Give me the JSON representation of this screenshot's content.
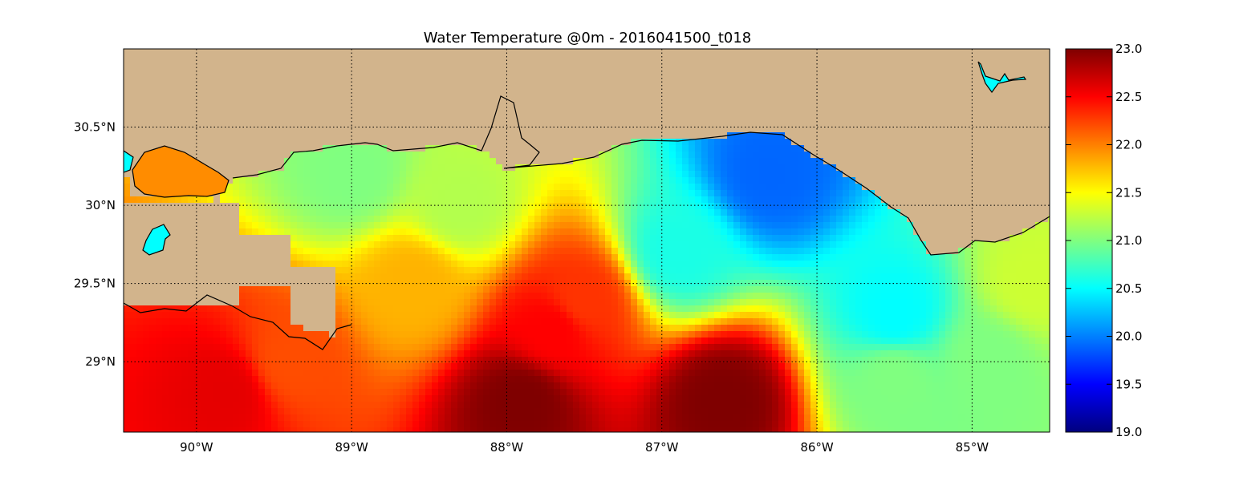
{
  "figure": {
    "title": "Water Temperature @0m - 2016041500_t018"
  },
  "map": {
    "land_color": "#d2b48c",
    "extent": {
      "lon": [
        -90.47,
        -84.5
      ],
      "lat": [
        28.55,
        31.0
      ]
    },
    "grid": true,
    "lon_ticks": [
      {
        "value": -90,
        "label": "90°W"
      },
      {
        "value": -89,
        "label": "89°W"
      },
      {
        "value": -88,
        "label": "88°W"
      },
      {
        "value": -87,
        "label": "87°W"
      },
      {
        "value": -86,
        "label": "86°W"
      },
      {
        "value": -85,
        "label": "85°W"
      }
    ],
    "lat_ticks": [
      {
        "value": 30.5,
        "label": "30.5°N"
      },
      {
        "value": 30.0,
        "label": "30°N"
      },
      {
        "value": 29.5,
        "label": "29.5°N"
      },
      {
        "value": 29.0,
        "label": "29°N"
      }
    ]
  },
  "colorbar": {
    "range": [
      19.0,
      23.0
    ],
    "colormap": "jet",
    "ticks": [
      "23.0",
      "22.5",
      "22.0",
      "21.5",
      "21.0",
      "20.5",
      "20.0",
      "19.5",
      "19.0"
    ],
    "stops": [
      "#00007f",
      "#0000ff",
      "#0080ff",
      "#00ffff",
      "#80ff80",
      "#ffff00",
      "#ff8000",
      "#ff0000",
      "#7f0000"
    ]
  },
  "chart_data": {
    "type": "heatmap",
    "title": "Water Temperature @0m - 2016041500_t018",
    "variable": "Water Temperature",
    "value_range": [
      19.0,
      23.0
    ],
    "x_range": [
      -90.47,
      -84.5
    ],
    "y_range": [
      28.55,
      31.0
    ],
    "grid": true,
    "legend": "colorbar-right",
    "regions": [
      {
        "lon": -86.3,
        "lat": 30.2,
        "value": 19.9
      },
      {
        "lon": -86.9,
        "lat": 29.7,
        "value": 20.6
      },
      {
        "lon": -85.5,
        "lat": 29.3,
        "value": 20.5
      },
      {
        "lon": -88.3,
        "lat": 30.0,
        "value": 21.2
      },
      {
        "lon": -88.6,
        "lat": 29.5,
        "value": 21.8
      },
      {
        "lon": -87.7,
        "lat": 29.2,
        "value": 22.5
      },
      {
        "lon": -87.5,
        "lat": 29.4,
        "value": 22.3
      },
      {
        "lon": -86.6,
        "lat": 28.75,
        "value": 23.0
      },
      {
        "lon": -87.9,
        "lat": 28.75,
        "value": 23.0
      },
      {
        "lon": -89.8,
        "lat": 28.8,
        "value": 22.6
      },
      {
        "lon": -89.4,
        "lat": 29.0,
        "value": 22.2
      },
      {
        "lon": -85.5,
        "lat": 28.9,
        "value": 21.0
      },
      {
        "lon": -84.9,
        "lat": 29.0,
        "value": 21.0
      },
      {
        "lon": -84.6,
        "lat": 29.5,
        "value": 21.3
      },
      {
        "lon": -89.0,
        "lat": 30.2,
        "value": 21.0
      }
    ]
  }
}
